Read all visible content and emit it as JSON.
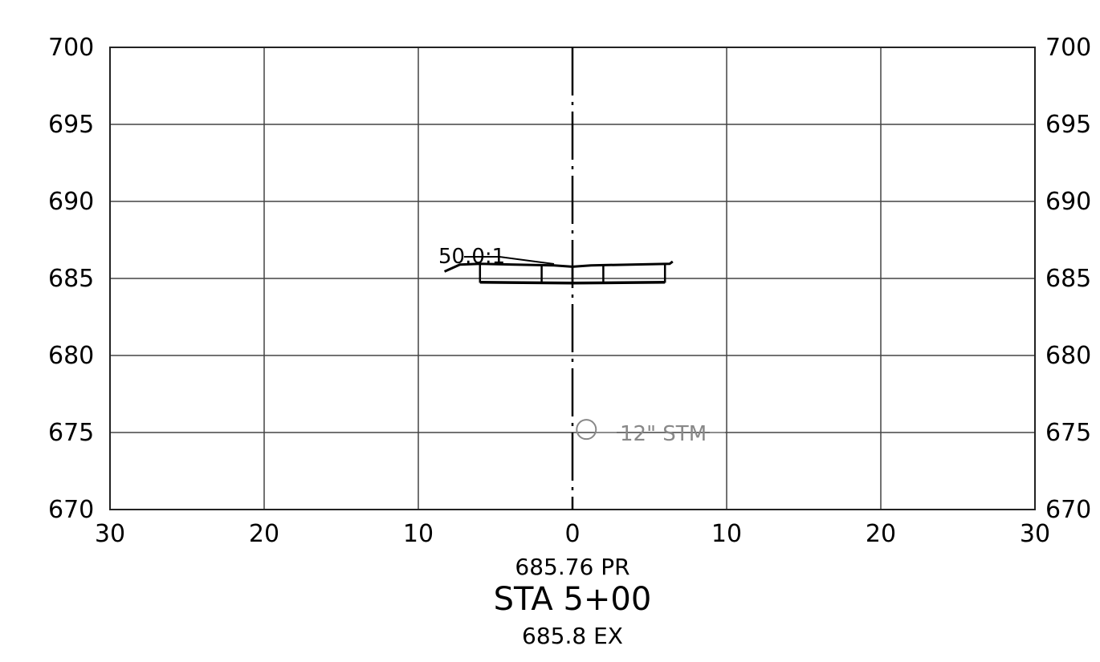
{
  "chart_data": {
    "type": "cross-section",
    "x_ticks": [
      "30",
      "20",
      "10",
      "0",
      "10",
      "20",
      "30"
    ],
    "x_offsets": [
      -30,
      -20,
      -10,
      0,
      10,
      20,
      30
    ],
    "xlim": [
      -30,
      30
    ],
    "y_ticks": [
      "700",
      "695",
      "690",
      "685",
      "680",
      "675",
      "670"
    ],
    "y_values": [
      700,
      695,
      690,
      685,
      680,
      675,
      670
    ],
    "ylim": [
      670,
      700
    ],
    "grid": true,
    "proposed_surface": [
      [
        -8.3,
        685.45
      ],
      [
        -7.3,
        685.9
      ],
      [
        -6.0,
        685.95
      ],
      [
        -1.2,
        685.85
      ],
      [
        0,
        685.76
      ],
      [
        1.2,
        685.85
      ],
      [
        6.3,
        685.95
      ],
      [
        6.5,
        686.1
      ]
    ],
    "pavement_bottom": [
      [
        -6.0,
        684.75
      ],
      [
        0,
        684.7
      ],
      [
        6.0,
        684.75
      ]
    ],
    "pavement_dividers": [
      -6.0,
      -2.0,
      0.0,
      2.0,
      6.0
    ],
    "slope_label": "50.0:1",
    "pipe": {
      "offset": 0.9,
      "elevation": 675.2,
      "label": "12\" STM"
    },
    "proposed_elevation_label": "685.76 PR",
    "station_label": "STA 5+00",
    "existing_elevation_label": "685.8 EX"
  }
}
